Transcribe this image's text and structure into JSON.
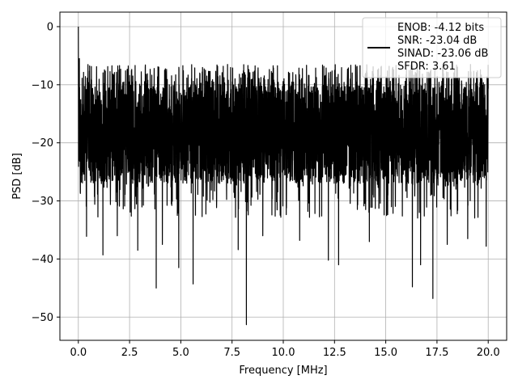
{
  "chart_data": {
    "type": "line",
    "xlabel": "Frequency [MHz]",
    "ylabel": "PSD [dB]",
    "xlim": [
      -0.9,
      20.9
    ],
    "ylim": [
      -54,
      2.5
    ],
    "xticks": [
      0.0,
      2.5,
      5.0,
      7.5,
      10.0,
      12.5,
      15.0,
      17.5,
      20.0
    ],
    "xtick_labels": [
      "0.0",
      "2.5",
      "5.0",
      "7.5",
      "10.0",
      "12.5",
      "15.0",
      "17.5",
      "20.0"
    ],
    "yticks": [
      0,
      -10,
      -20,
      -30,
      -40,
      -50
    ],
    "ytick_labels": [
      "0",
      "−10",
      "−20",
      "−30",
      "−40",
      "−50"
    ],
    "grid": true,
    "legend_position": "upper-right",
    "series": [
      {
        "name": "ENOB: -4.12 bits\nSNR: -23.04 dB\nSINAD: -23.06 dB\nSFDR: 3.61",
        "color": "#000000",
        "x_range": [
          0,
          20
        ],
        "typical_range_db": [
          -27,
          -10
        ],
        "envelope_top_db": -6.5,
        "peaks": [
          {
            "x": 0.0,
            "y": 0.0
          },
          {
            "x": 0.05,
            "y": -5.5
          }
        ],
        "dips": [
          {
            "x": 0.4,
            "y": -36.1
          },
          {
            "x": 1.2,
            "y": -39.3
          },
          {
            "x": 1.9,
            "y": -36.0
          },
          {
            "x": 2.9,
            "y": -38.5
          },
          {
            "x": 3.8,
            "y": -45.0
          },
          {
            "x": 4.1,
            "y": -37.5
          },
          {
            "x": 4.9,
            "y": -41.5
          },
          {
            "x": 5.6,
            "y": -44.3
          },
          {
            "x": 7.8,
            "y": -38.4
          },
          {
            "x": 8.2,
            "y": -51.3
          },
          {
            "x": 9.0,
            "y": -36.0
          },
          {
            "x": 10.8,
            "y": -36.8
          },
          {
            "x": 12.2,
            "y": -40.2
          },
          {
            "x": 12.7,
            "y": -41.0
          },
          {
            "x": 14.2,
            "y": -37.0
          },
          {
            "x": 16.3,
            "y": -44.8
          },
          {
            "x": 16.7,
            "y": -41.0
          },
          {
            "x": 17.3,
            "y": -46.8
          },
          {
            "x": 18.0,
            "y": -37.5
          },
          {
            "x": 19.0,
            "y": -36.5
          },
          {
            "x": 19.9,
            "y": -37.8
          }
        ]
      }
    ]
  }
}
